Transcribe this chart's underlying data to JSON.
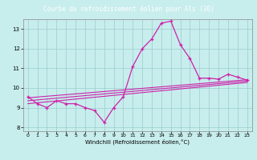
{
  "title": "Courbe du refroidissement éolien pour Als (30)",
  "xlabel": "Windchill (Refroidissement éolien,°C)",
  "bg_color": "#c8eded",
  "line_color": "#cc22aa",
  "grid_color": "#99cccc",
  "title_bg": "#7755aa",
  "title_fg": "#ffffff",
  "xlim": [
    -0.5,
    23.5
  ],
  "ylim": [
    7.8,
    13.5
  ],
  "yticks": [
    8,
    9,
    10,
    11,
    12,
    13
  ],
  "xticks": [
    0,
    1,
    2,
    3,
    4,
    5,
    6,
    7,
    8,
    9,
    10,
    11,
    12,
    13,
    14,
    15,
    16,
    17,
    18,
    19,
    20,
    21,
    22,
    23
  ],
  "main_x": [
    0,
    1,
    2,
    3,
    4,
    5,
    6,
    7,
    8,
    9,
    10,
    11,
    12,
    13,
    14,
    15,
    16,
    17,
    18,
    19,
    20,
    21,
    22,
    23
  ],
  "main_y": [
    9.55,
    9.2,
    9.0,
    9.35,
    9.2,
    9.2,
    9.0,
    8.85,
    8.25,
    9.0,
    9.55,
    11.1,
    12.0,
    12.5,
    13.3,
    13.4,
    12.2,
    11.5,
    10.5,
    10.5,
    10.45,
    10.7,
    10.55,
    10.4
  ],
  "trend1_x": [
    0,
    23
  ],
  "trend1_y": [
    9.5,
    10.42
  ],
  "trend2_x": [
    0,
    23
  ],
  "trend2_y": [
    9.35,
    10.35
  ],
  "trend3_x": [
    0,
    23
  ],
  "trend3_y": [
    9.2,
    10.28
  ]
}
